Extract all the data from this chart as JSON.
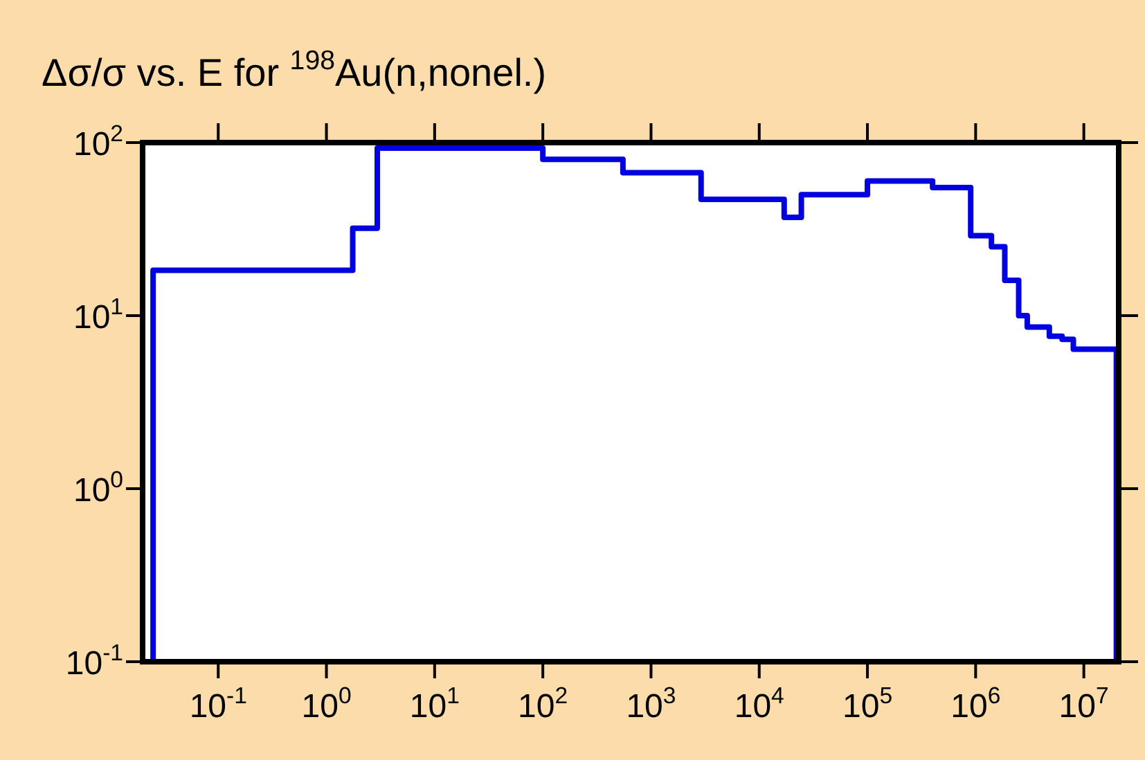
{
  "chart_data": {
    "type": "step",
    "title": "Δσ/σ vs. E for $^{198}$Au(n,nonel.)",
    "log": "xy",
    "legend": false,
    "xlim": [
      0.02,
      21000000
    ],
    "ylim": [
      0.1,
      100
    ],
    "xticks": [
      {
        "value": 0.1,
        "label": "10$^{-1}$"
      },
      {
        "value": 1,
        "label": "10$^{0}$"
      },
      {
        "value": 10,
        "label": "10$^{1}$"
      },
      {
        "value": 100,
        "label": "10$^{2}$"
      },
      {
        "value": 1000,
        "label": "10$^{3}$"
      },
      {
        "value": 10000,
        "label": "10$^{4}$"
      },
      {
        "value": 100000,
        "label": "10$^{5}$"
      },
      {
        "value": 1000000,
        "label": "10$^{6}$"
      },
      {
        "value": 10000000,
        "label": "10$^{7}$"
      }
    ],
    "yticks": [
      {
        "value": 0.1,
        "label": "10$^{-1}$"
      },
      {
        "value": 1,
        "label": "10$^{0}$"
      },
      {
        "value": 10,
        "label": "10$^{1}$"
      },
      {
        "value": 100,
        "label": "10$^{2}$"
      }
    ],
    "series": [
      {
        "color": "#0000e0",
        "x": [
          0.025,
          0.025,
          1.75,
          2.95,
          100,
          550,
          2900,
          17000,
          24500,
          100000,
          400000,
          900000,
          1400000,
          1860000,
          2500000,
          3000000,
          4800000,
          6300000,
          8000000,
          20000000,
          20000000
        ],
        "values": [
          0.1,
          18.3,
          32,
          93,
          80,
          67,
          47,
          37,
          50,
          60,
          55,
          29,
          25,
          16,
          10,
          8.6,
          7.6,
          7.3,
          6.4,
          6.4,
          0.1
        ]
      }
    ]
  }
}
